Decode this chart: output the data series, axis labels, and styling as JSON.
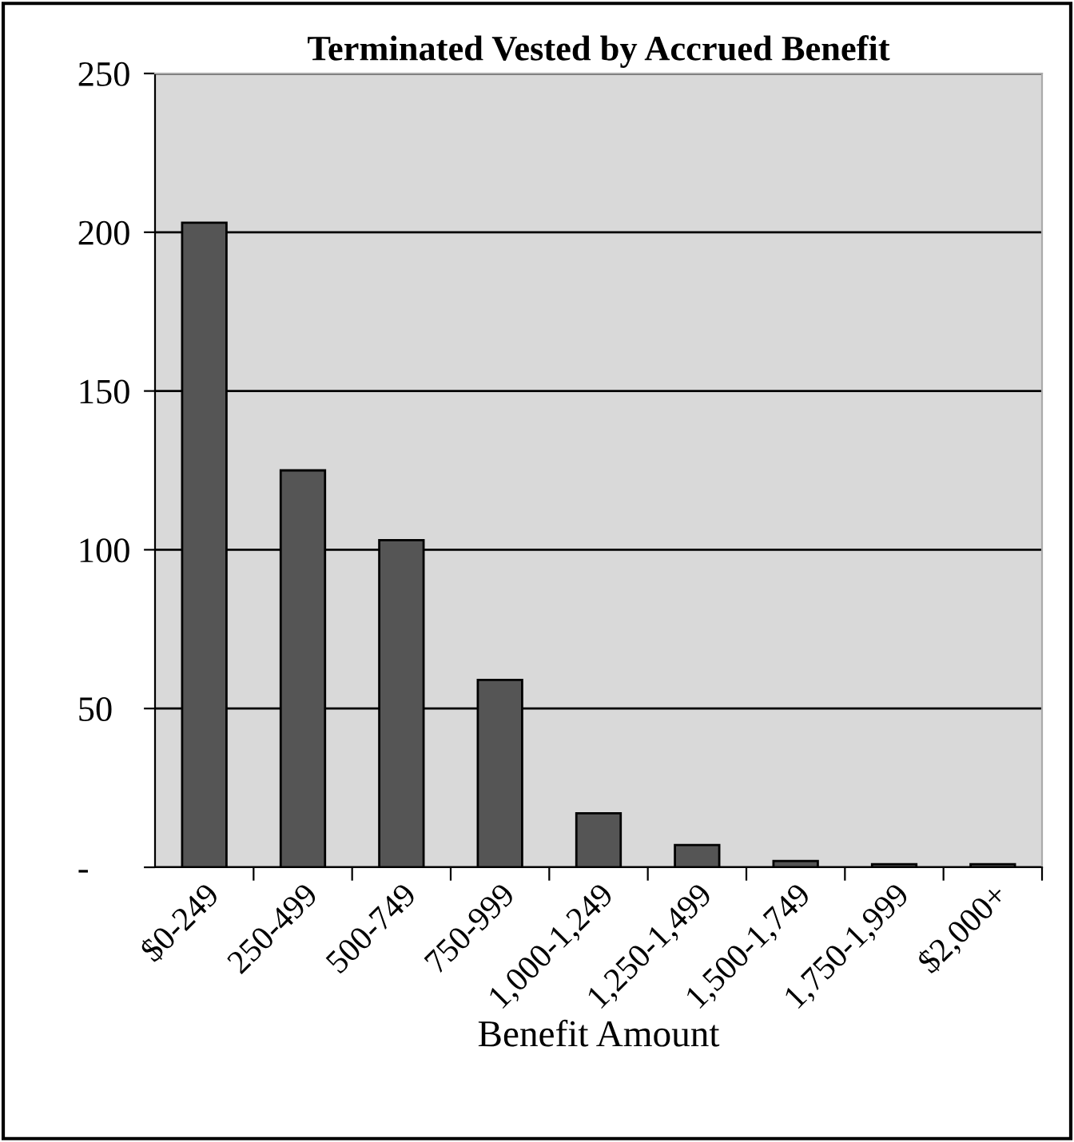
{
  "chart_data": {
    "type": "bar",
    "title": "Terminated Vested by Accrued Benefit",
    "xlabel": "Benefit Amount",
    "categories": [
      "$0-249",
      "250-499",
      "500-749",
      "750-999",
      "1,000-1,249",
      "1,250-1,499",
      "1,500-1,749",
      "1,750-1,999",
      "$2,000+"
    ],
    "values": [
      203,
      125,
      103,
      59,
      17,
      7,
      2,
      1,
      1
    ],
    "color": "#555555",
    "ylim": [
      0,
      250
    ],
    "yticks": [
      {
        "value": 0,
        "label": "-"
      },
      50,
      100,
      150,
      200,
      250
    ],
    "grid": "y"
  }
}
